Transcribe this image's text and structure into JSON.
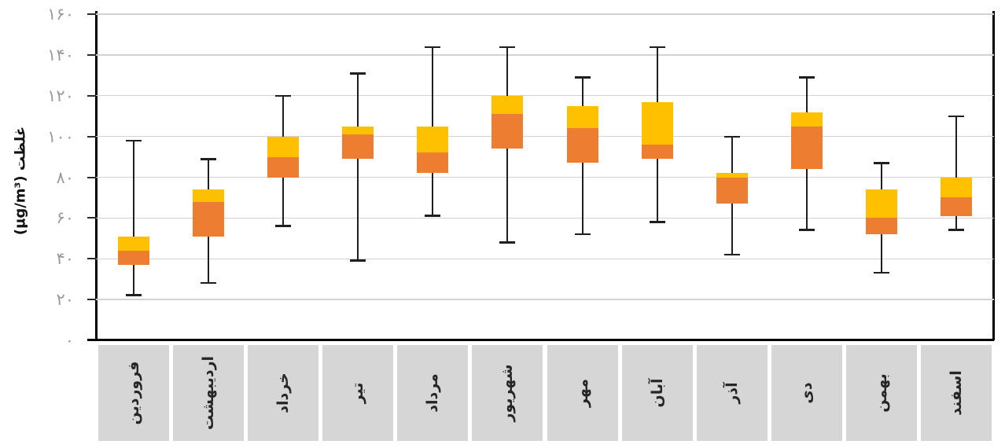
{
  "chart_data": {
    "type": "boxplot",
    "title": "",
    "xlabel": "",
    "ylabel": "غلظت (µg/m³)",
    "ylim": [
      0,
      160
    ],
    "ytick_step": 20,
    "grid": "horizontal",
    "legend": "none",
    "yticks": [
      {
        "value": 0,
        "label": "۰"
      },
      {
        "value": 20,
        "label": "۲۰"
      },
      {
        "value": 40,
        "label": "۴۰"
      },
      {
        "value": 60,
        "label": "۶۰"
      },
      {
        "value": 80,
        "label": "۸۰"
      },
      {
        "value": 100,
        "label": "۱۰۰"
      },
      {
        "value": 120,
        "label": "۱۲۰"
      },
      {
        "value": 140,
        "label": "۱۴۰"
      },
      {
        "value": 160,
        "label": "۱۶۰"
      }
    ],
    "categories": [
      "فروردین",
      "اردیبهشت",
      "خرداد",
      "تیر",
      "مرداد",
      "شهریور",
      "مهر",
      "آبان",
      "آذر",
      "دی",
      "بهمن",
      "اسفند"
    ],
    "series": [
      {
        "month": "فروردین",
        "min": 22,
        "q1": 37,
        "median": 44,
        "q3": 51,
        "max": 98
      },
      {
        "month": "اردیبهشت",
        "min": 28,
        "q1": 51,
        "median": 68,
        "q3": 74,
        "max": 89
      },
      {
        "month": "خرداد",
        "min": 56,
        "q1": 80,
        "median": 90,
        "q3": 100,
        "max": 120
      },
      {
        "month": "تیر",
        "min": 39,
        "q1": 89,
        "median": 101,
        "q3": 105,
        "max": 131
      },
      {
        "month": "مرداد",
        "min": 61,
        "q1": 82,
        "median": 92,
        "q3": 105,
        "max": 144
      },
      {
        "month": "شهریور",
        "min": 48,
        "q1": 94,
        "median": 111,
        "q3": 120,
        "max": 144
      },
      {
        "month": "مهر",
        "min": 52,
        "q1": 87,
        "median": 104,
        "q3": 115,
        "max": 129
      },
      {
        "month": "آبان",
        "min": 58,
        "q1": 89,
        "median": 96,
        "q3": 117,
        "max": 144
      },
      {
        "month": "آذر",
        "min": 42,
        "q1": 67,
        "median": 80,
        "q3": 82,
        "max": 100
      },
      {
        "month": "دی",
        "min": 54,
        "q1": 84,
        "median": 105,
        "q3": 112,
        "max": 129
      },
      {
        "month": "بهمن",
        "min": 33,
        "q1": 52,
        "median": 60,
        "q3": 74,
        "max": 87
      },
      {
        "month": "اسفند",
        "min": 54,
        "q1": 61,
        "median": 70,
        "q3": 80,
        "max": 110
      }
    ],
    "colors": {
      "lower_box": "#ED7D31",
      "upper_box": "#FFC000",
      "whisker": "#1f1f1f",
      "gridline": "#d2d2d2",
      "axis": "#000000",
      "tick_label": "#9b9b9b",
      "category_cell_bg": "#d6d6d6",
      "category_label": "#262626"
    }
  }
}
